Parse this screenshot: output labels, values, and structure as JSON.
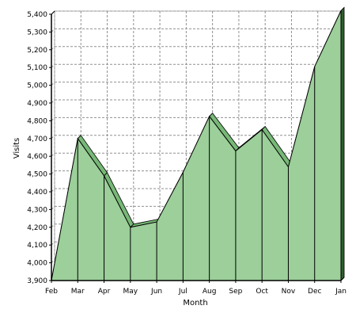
{
  "chart_data": {
    "type": "area",
    "title": "",
    "xlabel": "Month",
    "ylabel": "Visits",
    "categories": [
      "Feb",
      "Mar",
      "Apr",
      "May",
      "Jun",
      "Jul",
      "Aug",
      "Sep",
      "Oct",
      "Nov",
      "Dec",
      "Jan"
    ],
    "series": [
      {
        "values": [
          3900,
          4700,
          4490,
          4200,
          4230,
          4510,
          4825,
          4630,
          4750,
          4540,
          5105,
          5420
        ]
      }
    ],
    "ylim": [
      3900,
      5400
    ],
    "yticks": [
      "3,900",
      "4,000",
      "4,100",
      "4,200",
      "4,300",
      "4,400",
      "4,500",
      "4,600",
      "4,700",
      "4,800",
      "4,900",
      "5,000",
      "5,100",
      "5,200",
      "5,300",
      "5,400"
    ],
    "grid": true,
    "legend": "none",
    "three_d": true,
    "colors": {
      "fill": "#9ccf9a",
      "top_face": "#77b877",
      "side": "#2e5e2e",
      "grid": "#909090",
      "line": "#000000"
    }
  }
}
